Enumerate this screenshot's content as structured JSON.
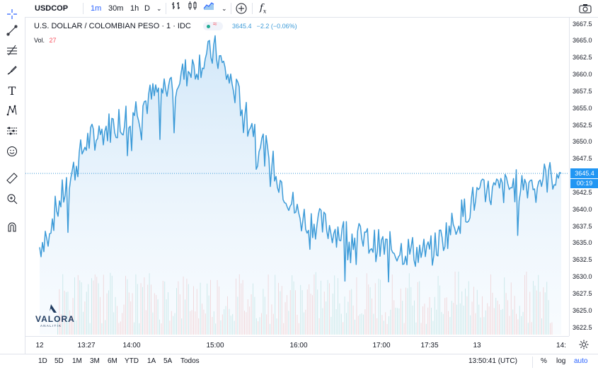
{
  "toolbar": {
    "symbol": "USDCOP",
    "intervals": [
      "1m",
      "30m",
      "1h",
      "D"
    ],
    "active_interval": "1m",
    "indicators_icon": "fx-icon",
    "camera_icon": "camera-icon"
  },
  "legend": {
    "title": "U.S. DOLLAR / COLOMBIAN PESO · 1 · IDC",
    "last": "3645.4",
    "change": "−2.2 (−0.06%)",
    "vol_label": "Vol.",
    "vol_value": "27"
  },
  "price_axis": {
    "ticks": [
      "3667.5",
      "3665.0",
      "3662.5",
      "3660.0",
      "3657.5",
      "3655.0",
      "3652.5",
      "3650.0",
      "3647.5",
      "3642.5",
      "3640.0",
      "3637.5",
      "3635.0",
      "3632.5",
      "3630.0",
      "3627.5",
      "3625.0",
      "3622.5"
    ],
    "last_price_tag": "3645.4",
    "countdown": "00:19"
  },
  "time_axis": {
    "ticks": [
      "12",
      "13:27",
      "14:00",
      "15:00",
      "16:00",
      "17:00",
      "17:35",
      "13",
      "14:"
    ]
  },
  "bottombar": {
    "ranges": [
      "1D",
      "5D",
      "1M",
      "3M",
      "6M",
      "YTD",
      "1A",
      "5A",
      "Todos"
    ],
    "clock": "13:50:41 (UTC)",
    "percent": "%",
    "log": "log",
    "auto": "auto"
  },
  "watermark": {
    "brand": "VALORA",
    "sub": "ANALITIK"
  },
  "colors": {
    "line": "#3d9bd8",
    "area_top": "#cfe6f8",
    "volume_up": "#b2dfdb",
    "volume_down": "#f6c1c1",
    "accent": "#2196f3"
  },
  "chart_data": {
    "type": "area",
    "title": "U.S. DOLLAR / COLOMBIAN PESO · 1 · IDC",
    "ylim": [
      3621.5,
      3668.5
    ],
    "x": [
      "12",
      "13:27",
      "14:00",
      "15:00",
      "16:00",
      "17:00",
      "17:35",
      "13",
      "13:50"
    ],
    "values": [
      3634.5,
      3650.0,
      3654.5,
      3663.5,
      3639.0,
      3634.5,
      3633.5,
      3642.0,
      3645.4
    ],
    "grid": false,
    "legend_position": "top-left"
  }
}
